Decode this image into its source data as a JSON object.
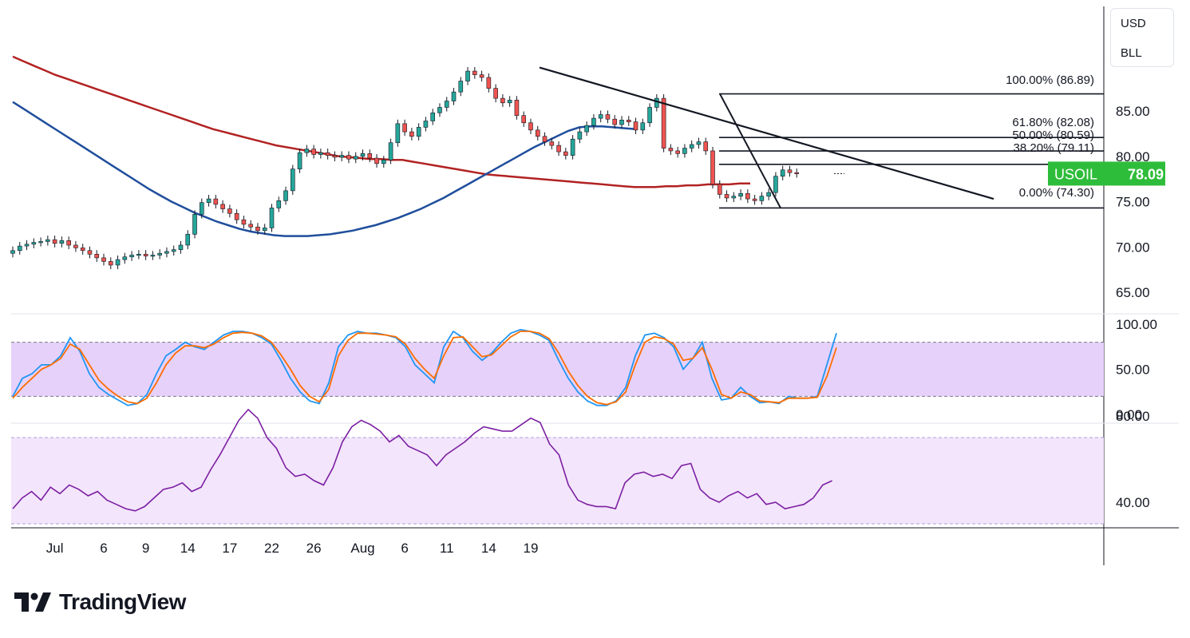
{
  "units": {
    "currency": "USD",
    "unit": "BLL"
  },
  "brand": {
    "name": "TradingView"
  },
  "colors": {
    "up": "#26a69a",
    "down": "#ef5350",
    "candle_body": "#131722",
    "ma_red": "#b22222",
    "ma_blue": "#1f4e9c",
    "price_label": "#2ebd3a",
    "stoch_k": "#2196f3",
    "stoch_d": "#ff6d00",
    "rsi": "#7b1fa2",
    "band_fill": "#e6d1fb",
    "rsi_band_fill": "#f3e5fb"
  },
  "chart_data": [
    {
      "type": "candlestick",
      "symbol": "USOIL",
      "last_price": "78.09",
      "y_ticks": [
        "85.00",
        "80.00",
        "75.00",
        "70.00",
        "65.00"
      ],
      "y_tick_values": [
        85,
        80,
        75,
        70,
        65
      ],
      "ylim": [
        62.3,
        93.6
      ],
      "x_ticks": [
        "Jul",
        "6",
        "9",
        "14",
        "17",
        "22",
        "26",
        "Aug",
        "6",
        "11",
        "14",
        "19"
      ],
      "x_tick_bars": [
        6,
        13,
        19,
        25,
        31,
        37,
        43,
        50,
        56,
        62,
        68,
        74
      ],
      "candles_close": [
        69.6,
        70.1,
        70.3,
        70.5,
        70.6,
        70.8,
        70.4,
        70.7,
        70.2,
        69.9,
        69.6,
        69.2,
        68.8,
        68.4,
        68.0,
        68.6,
        68.9,
        69.1,
        69.2,
        69.0,
        69.1,
        69.3,
        69.5,
        69.7,
        70.2,
        71.4,
        73.6,
        74.9,
        75.3,
        74.7,
        74.2,
        73.7,
        73.0,
        72.5,
        72.2,
        71.8,
        72.1,
        74.3,
        75.1,
        76.2,
        78.6,
        80.4,
        80.8,
        80.2,
        80.4,
        80.1,
        79.9,
        80.1,
        79.7,
        80.0,
        80.3,
        79.8,
        79.2,
        79.6,
        81.5,
        83.6,
        82.7,
        82.2,
        83.2,
        83.9,
        84.8,
        85.4,
        86.1,
        87.1,
        88.3,
        89.4,
        89.0,
        88.7,
        87.5,
        86.4,
        85.9,
        86.2,
        84.5,
        83.7,
        82.9,
        82.2,
        81.6,
        81.2,
        80.5,
        80.1,
        81.9,
        82.7,
        83.4,
        84.2,
        84.6,
        84.1,
        83.5,
        84.0,
        83.8,
        82.9,
        83.7,
        85.4,
        86.4,
        80.9,
        80.6,
        80.3,
        80.9,
        81.3,
        81.6,
        80.6,
        76.9,
        75.8,
        75.4,
        75.6,
        75.9,
        75.3,
        75.1,
        75.6,
        76.0,
        77.8,
        78.5,
        78.2,
        78.09
      ],
      "fib_levels": [
        {
          "label": "100.00% (86.89)",
          "value": 86.89
        },
        {
          "label": "61.80% (82.08)",
          "value": 82.08
        },
        {
          "label": "50.00% (80.59)",
          "value": 80.59
        },
        {
          "label": "38.20% (79.11)",
          "value": 79.11
        },
        {
          "label": "0.00% (74.30)",
          "value": 74.3
        }
      ],
      "series": [
        {
          "values": [
            91.0,
            90.5,
            90.0,
            89.5,
            89.0,
            88.6,
            88.2,
            87.8,
            87.4,
            87.0,
            86.6,
            86.2,
            85.8,
            85.4,
            85.0,
            84.6,
            84.2,
            83.8,
            83.4,
            83.0,
            82.7,
            82.4,
            82.1,
            81.8,
            81.5,
            81.2,
            81.0,
            80.8,
            80.6,
            80.4,
            80.2,
            80.0,
            79.9,
            79.8,
            79.7,
            79.7,
            79.6,
            79.6,
            79.4,
            79.2,
            79.0,
            78.8,
            78.6,
            78.4,
            78.2,
            78.0,
            77.9,
            77.8,
            77.7,
            77.6,
            77.5,
            77.4,
            77.3,
            77.2,
            77.1,
            77.0,
            76.9,
            76.8,
            76.7,
            76.6,
            76.6,
            76.6,
            76.7,
            76.7,
            76.8,
            76.8,
            76.9,
            76.9,
            76.9,
            77.0,
            77.0
          ]
        },
        {
          "values": [
            86.0,
            85.2,
            84.4,
            83.6,
            82.8,
            82.0,
            81.2,
            80.4,
            79.6,
            78.8,
            78.0,
            77.2,
            76.4,
            75.7,
            75.0,
            74.4,
            73.8,
            73.3,
            72.8,
            72.4,
            72.0,
            71.7,
            71.5,
            71.3,
            71.2,
            71.2,
            71.2,
            71.3,
            71.4,
            71.6,
            71.8,
            72.1,
            72.4,
            72.8,
            73.2,
            73.7,
            74.2,
            74.8,
            75.4,
            76.1,
            76.8,
            77.5,
            78.2,
            78.9,
            79.6,
            80.3,
            81.0,
            81.6,
            82.2,
            82.8,
            83.2,
            83.3,
            83.3,
            83.2,
            83.1,
            83.0
          ]
        }
      ]
    },
    {
      "type": "line",
      "indicator": "Stochastic",
      "y_ticks": [
        "100.00",
        "50.00",
        "0.00"
      ],
      "y_tick_values": [
        100,
        50,
        0
      ],
      "band": [
        20,
        80
      ],
      "series": [
        {
          "values": [
            20,
            40,
            45,
            55,
            55,
            65,
            85,
            70,
            45,
            30,
            22,
            16,
            10,
            12,
            22,
            45,
            65,
            72,
            80,
            75,
            72,
            80,
            88,
            92,
            92,
            90,
            85,
            78,
            60,
            40,
            25,
            15,
            12,
            35,
            75,
            88,
            92,
            90,
            90,
            88,
            85,
            75,
            55,
            45,
            35,
            75,
            92,
            85,
            70,
            60,
            68,
            80,
            90,
            94,
            92,
            88,
            82,
            60,
            40,
            25,
            15,
            10,
            10,
            15,
            30,
            65,
            88,
            90,
            85,
            75,
            50,
            62,
            80,
            40,
            16,
            18,
            30,
            20,
            13,
            14,
            12,
            20,
            18,
            18,
            20,
            55,
            90
          ]
        },
        {
          "values": [
            18,
            30,
            40,
            50,
            55,
            62,
            78,
            72,
            55,
            38,
            28,
            20,
            14,
            12,
            18,
            35,
            55,
            68,
            76,
            76,
            74,
            78,
            85,
            90,
            91,
            90,
            87,
            80,
            66,
            50,
            32,
            20,
            14,
            28,
            65,
            82,
            90,
            90,
            89,
            88,
            86,
            78,
            62,
            50,
            40,
            65,
            85,
            86,
            75,
            64,
            66,
            76,
            86,
            92,
            92,
            90,
            84,
            68,
            48,
            32,
            20,
            13,
            11,
            14,
            25,
            55,
            80,
            86,
            84,
            78,
            60,
            62,
            74,
            50,
            22,
            18,
            25,
            22,
            15,
            14,
            13,
            18,
            18,
            18,
            19,
            42,
            74
          ]
        }
      ]
    },
    {
      "type": "line",
      "indicator": "RSI",
      "y_ticks": [
        "80.00",
        "40.00"
      ],
      "y_tick_values": [
        80,
        40
      ],
      "band": [
        30,
        70
      ],
      "series": [
        {
          "values": [
            37,
            42,
            45,
            41,
            47,
            44,
            48,
            46,
            43,
            45,
            41,
            39,
            37,
            36,
            38,
            42,
            46,
            47,
            49,
            45,
            47,
            55,
            62,
            70,
            78,
            83,
            79,
            70,
            65,
            56,
            52,
            53,
            50,
            48,
            56,
            68,
            75,
            78,
            76,
            73,
            68,
            71,
            66,
            64,
            62,
            57,
            62,
            65,
            68,
            72,
            75,
            74,
            73,
            73,
            76,
            79,
            77,
            67,
            62,
            48,
            41,
            39,
            38,
            38,
            37,
            49,
            53,
            54,
            52,
            53,
            51,
            57,
            58,
            46,
            42,
            40,
            43,
            45,
            42,
            44,
            39,
            40,
            37,
            38,
            39,
            42,
            48,
            50
          ]
        }
      ]
    }
  ]
}
